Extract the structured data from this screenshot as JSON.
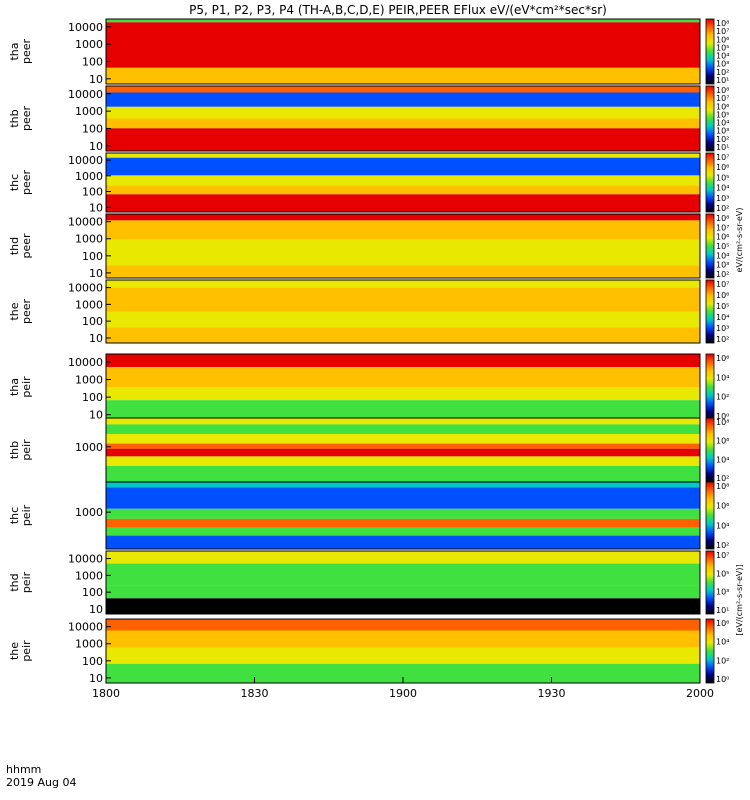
{
  "chart_data": {
    "type": "heatmap",
    "title": "P5, P1, P2, P3, P4 (TH-A,B,C,D,E) PEIR,PEER EFlux eV/(eV*cm²*sec*sr)",
    "x_ticks": [
      "1800",
      "1830",
      "1900",
      "1930",
      "2000"
    ],
    "x_range": [
      "1800",
      "2000"
    ],
    "x_corner_label": "hhmm",
    "date_label": "2019 Aug 04",
    "colorbar_title_electron": "eV/(cm²-s-sr-eV)",
    "colorbar_title_ion": "[eV/(cm²-s-sr-eV)]",
    "panels": [
      {
        "probe": "tha",
        "species": "peer",
        "ylabel": [
          "tha",
          "peer"
        ],
        "y_ticks": [
          "10000",
          "1000",
          "100",
          "10"
        ],
        "cb_ticks": [
          "10⁸",
          "10⁷",
          "10⁶",
          "10⁵",
          "10⁴",
          "10³",
          "10²",
          "10¹"
        ]
      },
      {
        "probe": "thb",
        "species": "peer",
        "ylabel": [
          "thb",
          "peer"
        ],
        "y_ticks": [
          "10000",
          "1000",
          "100",
          "10"
        ],
        "cb_ticks": [
          "10⁸",
          "10⁷",
          "10⁶",
          "10⁵",
          "10⁴",
          "10³",
          "10²",
          "10¹"
        ]
      },
      {
        "probe": "thc",
        "species": "peer",
        "ylabel": [
          "thc",
          "peer"
        ],
        "y_ticks": [
          "10000",
          "1000",
          "100",
          "10"
        ],
        "cb_ticks": [
          "10⁷",
          "10⁶",
          "10⁵",
          "10⁴",
          "10³",
          "10²"
        ]
      },
      {
        "probe": "thd",
        "species": "peer",
        "ylabel": [
          "thd",
          "peer"
        ],
        "y_ticks": [
          "10000",
          "1000",
          "100",
          "10"
        ],
        "cb_ticks": [
          "10⁸",
          "10⁷",
          "10⁶",
          "10⁵",
          "10⁴",
          "10³",
          "10²"
        ]
      },
      {
        "probe": "the",
        "species": "peer",
        "ylabel": [
          "the",
          "peer"
        ],
        "y_ticks": [
          "10000",
          "1000",
          "100",
          "10"
        ],
        "cb_ticks": [
          "10⁷",
          "10⁶",
          "10⁵",
          "10⁴",
          "10³",
          "10²"
        ]
      },
      {
        "probe": "tha",
        "species": "peir",
        "ylabel": [
          "tha",
          "peir"
        ],
        "y_ticks": [
          "10000",
          "1000",
          "100",
          "10"
        ],
        "cb_ticks": [
          "10⁶",
          "10⁴",
          "10²",
          "10⁰"
        ]
      },
      {
        "probe": "thb",
        "species": "peir",
        "ylabel": [
          "thb",
          "peir"
        ],
        "y_ticks": [
          "1000"
        ],
        "cb_ticks": [
          "10⁸",
          "10⁶",
          "10⁴",
          "10²"
        ]
      },
      {
        "probe": "thc",
        "species": "peir",
        "ylabel": [
          "thc",
          "peir"
        ],
        "y_ticks": [
          "1000"
        ],
        "cb_ticks": [
          "10⁸",
          "10⁶",
          "10⁴",
          "10²"
        ]
      },
      {
        "probe": "thd",
        "species": "peir",
        "ylabel": [
          "thd",
          "peir"
        ],
        "y_ticks": [
          "10000",
          "1000",
          "100",
          "10"
        ],
        "cb_ticks": [
          "10⁷",
          "10⁵",
          "10³",
          "10¹"
        ]
      },
      {
        "probe": "the",
        "species": "peir",
        "ylabel": [
          "the",
          "peir"
        ],
        "y_ticks": [
          "10000",
          "1000",
          "100",
          "10"
        ],
        "cb_ticks": [
          "10⁶",
          "10⁴",
          "10²",
          "10⁰"
        ]
      }
    ],
    "colorscale": [
      "#e60000",
      "#ff6000",
      "#ffc000",
      "#e8e800",
      "#40e040",
      "#00c8c8",
      "#0050ff",
      "#000080",
      "#000000"
    ]
  }
}
